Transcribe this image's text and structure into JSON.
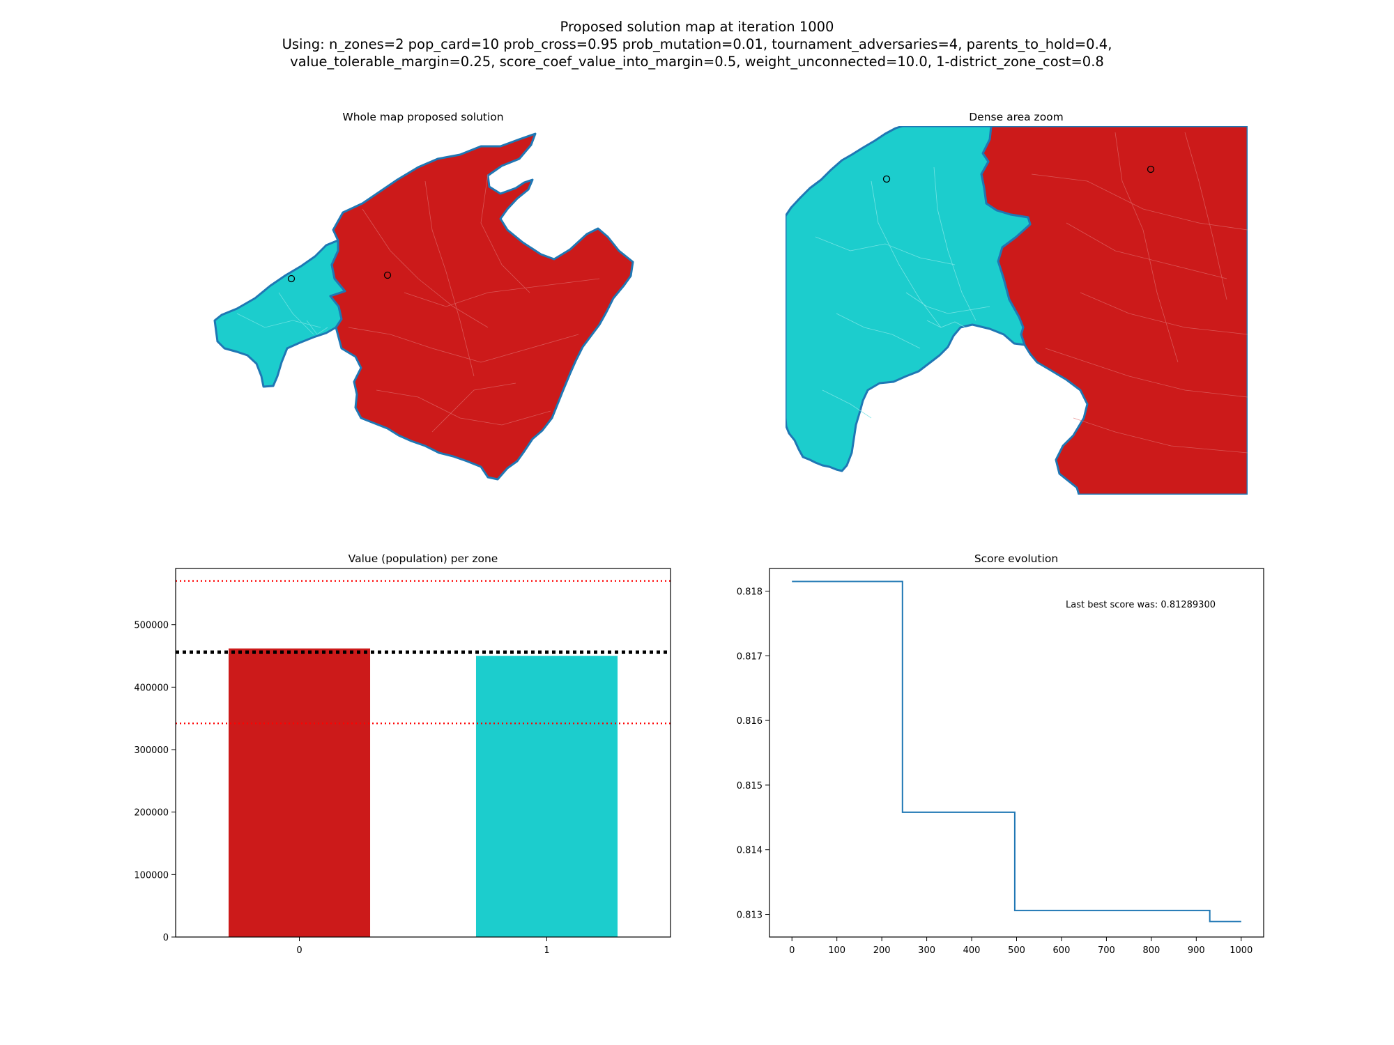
{
  "figure": {
    "title_lines": [
      "Proposed solution map at iteration 1000",
      "Using: n_zones=2 pop_card=10 prob_cross=0.95 prob_mutation=0.01, tournament_adversaries=4, parents_to_hold=0.4,",
      "value_tolerable_margin=0.25, score_coef_value_into_margin=0.5, weight_unconnected=10.0, 1-district_zone_cost=0.8"
    ]
  },
  "colors": {
    "zone0": "#cc1a1a",
    "zone1": "#1ccdcd",
    "coast": "#1f77b4",
    "margin_line": "#ff0000",
    "target_line": "#000000",
    "score_line": "#1f77b4"
  },
  "maps": {
    "whole": {
      "title": "Whole map proposed solution"
    },
    "zoom": {
      "title": "Dense area zoom"
    }
  },
  "chart_data": [
    {
      "type": "bar",
      "title": "Value (population) per zone",
      "xlabel": "",
      "ylabel": "",
      "categories": [
        "0",
        "1"
      ],
      "values": [
        462000,
        450000
      ],
      "bar_colors": [
        "#cc1a1a",
        "#1ccdcd"
      ],
      "ylim": [
        0,
        590000
      ],
      "yticks": [
        0,
        100000,
        200000,
        300000,
        400000,
        500000
      ],
      "reference_lines": [
        {
          "y": 456000,
          "style": "dotted",
          "color": "#000000"
        },
        {
          "y": 342000,
          "style": "dotted",
          "color": "#ff0000"
        },
        {
          "y": 570000,
          "style": "dotted",
          "color": "#ff0000"
        }
      ],
      "grid": false,
      "legend": "none"
    },
    {
      "type": "line",
      "title": "Score evolution",
      "xlabel": "",
      "ylabel": "",
      "x": [
        0,
        246,
        246,
        496,
        496,
        930,
        930,
        1000
      ],
      "y": [
        0.81815,
        0.81815,
        0.81458,
        0.81458,
        0.81306,
        0.81306,
        0.81289,
        0.81289
      ],
      "xlim": [
        -50,
        1050
      ],
      "ylim": [
        0.81265,
        0.81835
      ],
      "xticks": [
        0,
        100,
        200,
        300,
        400,
        500,
        600,
        700,
        800,
        900,
        1000
      ],
      "yticks": [
        0.813,
        0.814,
        0.815,
        0.816,
        0.817,
        0.818
      ],
      "annotation": "Last best score was: 0.81289300",
      "grid": false,
      "legend": "none"
    }
  ]
}
